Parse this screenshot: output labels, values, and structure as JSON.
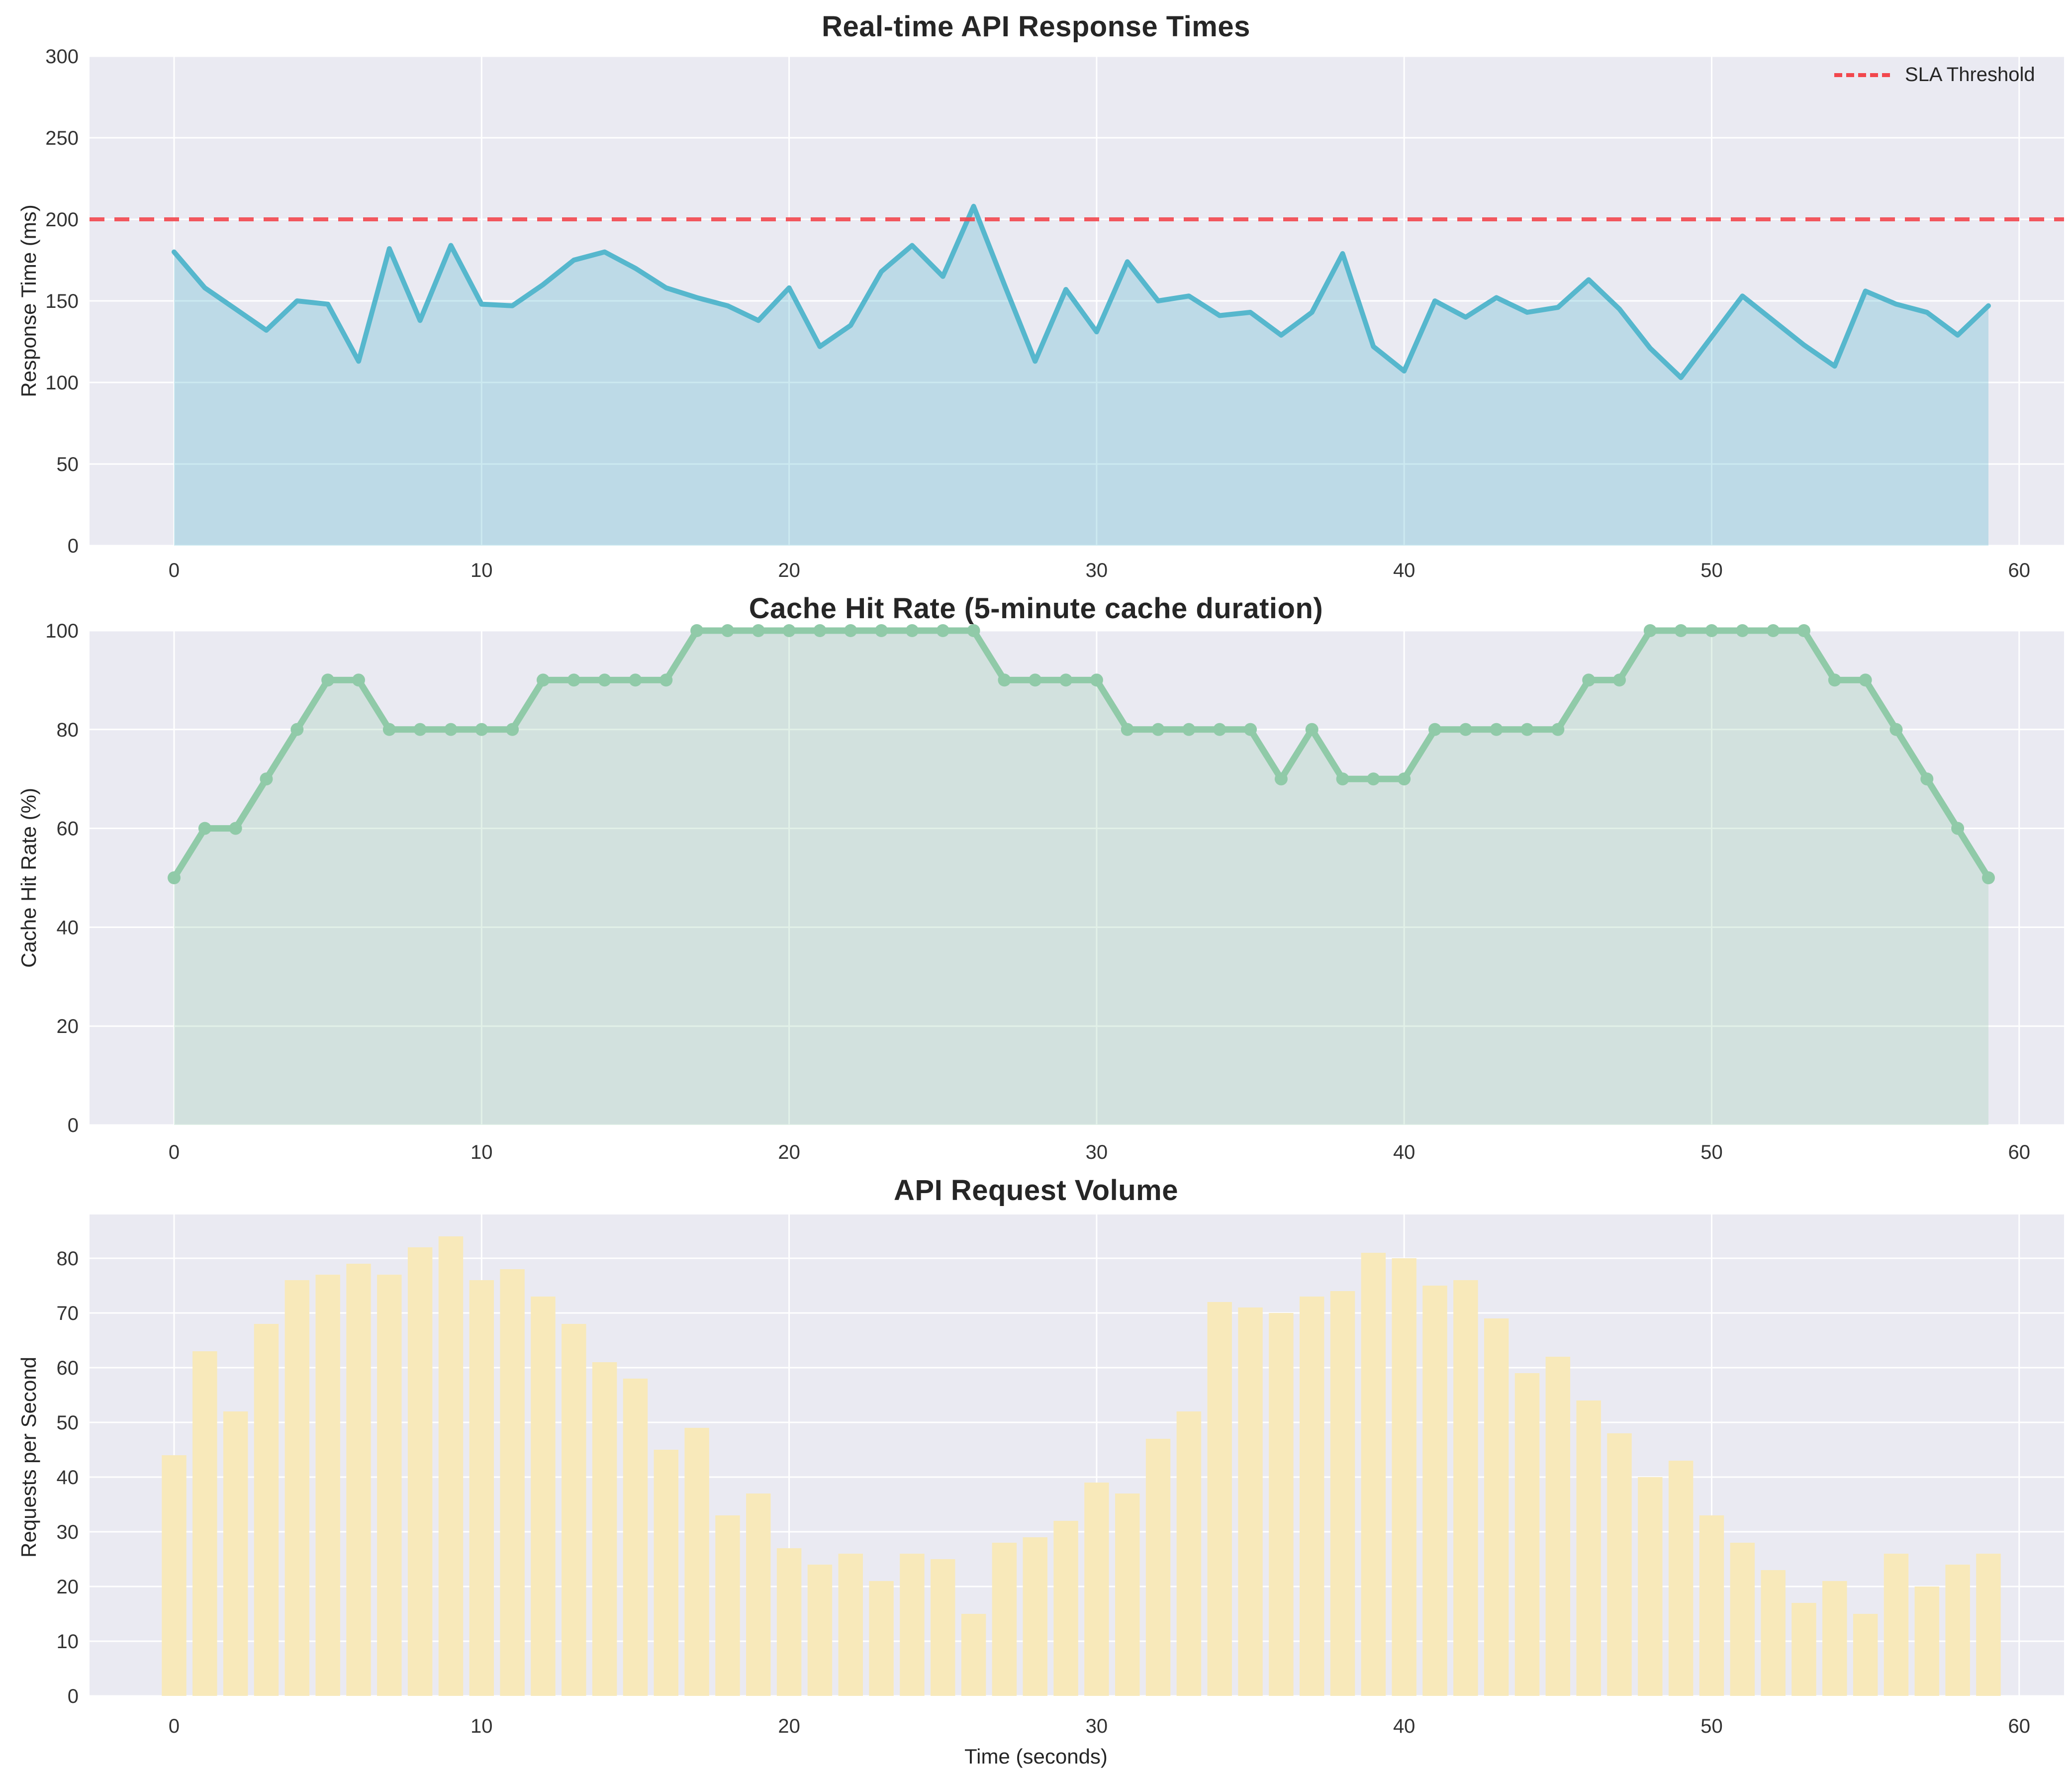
{
  "figure": {
    "background": "#ffffff",
    "plot_background": "#eaeaf2",
    "grid_color": "#ffffff",
    "tick_color": "#333333",
    "title_color": "#262626"
  },
  "xlabel": "Time (seconds)",
  "legend": {
    "label": "SLA Threshold",
    "color": "#f2474d",
    "position": "upper right"
  },
  "chart_data": [
    {
      "type": "area",
      "title": "Real-time API Response Times",
      "ylabel": "Response Time (ms)",
      "xlabel": "",
      "ylim": [
        0,
        300
      ],
      "yticks": [
        0,
        50,
        100,
        150,
        200,
        250,
        300
      ],
      "xticks": [
        0,
        10,
        20,
        30,
        40,
        50,
        60
      ],
      "grid": true,
      "line_color": "#56b7cd",
      "fill_alpha": 0.3,
      "sla_threshold": {
        "value": 200,
        "label": "SLA Threshold",
        "color": "#f2474d",
        "style": "dashed"
      },
      "x_start": 0,
      "x_step": 1,
      "values": [
        180,
        158,
        145,
        132,
        150,
        148,
        113,
        182,
        138,
        184,
        148,
        147,
        160,
        175,
        180,
        170,
        158,
        152,
        147,
        138,
        158,
        122,
        135,
        168,
        184,
        165,
        208,
        160,
        113,
        157,
        131,
        174,
        150,
        153,
        141,
        143,
        129,
        143,
        179,
        122,
        107,
        150,
        140,
        152,
        143,
        146,
        163,
        145,
        121,
        103,
        128,
        153,
        138,
        123,
        110,
        156,
        148,
        143,
        129,
        147
      ]
    },
    {
      "type": "area",
      "title": "Cache Hit Rate (5-minute cache duration)",
      "ylabel": "Cache Hit Rate (%)",
      "xlabel": "",
      "ylim": [
        0,
        100
      ],
      "yticks": [
        0,
        20,
        40,
        60,
        80,
        100
      ],
      "xticks": [
        0,
        10,
        20,
        30,
        40,
        50,
        60
      ],
      "grid": true,
      "line_color": "#90caa8",
      "fill_alpha": 0.26,
      "markers": true,
      "x_start": 0,
      "x_step": 1,
      "values": [
        50,
        60,
        60,
        70,
        80,
        90,
        90,
        80,
        80,
        80,
        80,
        80,
        90,
        90,
        90,
        90,
        90,
        100,
        100,
        100,
        100,
        100,
        100,
        100,
        100,
        100,
        100,
        90,
        90,
        90,
        90,
        80,
        80,
        80,
        80,
        80,
        70,
        80,
        70,
        70,
        70,
        80,
        80,
        80,
        80,
        80,
        90,
        90,
        100,
        100,
        100,
        100,
        100,
        100,
        90,
        90,
        80,
        70,
        60,
        50
      ]
    },
    {
      "type": "bar",
      "title": "API Request Volume",
      "ylabel": "Requests per Second",
      "xlabel": "Time (seconds)",
      "ylim": [
        0,
        88
      ],
      "yticks": [
        0,
        10,
        20,
        30,
        40,
        50,
        60,
        70,
        80
      ],
      "xticks": [
        0,
        10,
        20,
        30,
        40,
        50,
        60
      ],
      "grid": true,
      "bar_color": "#f8e9ba",
      "x_start": 0,
      "x_step": 1,
      "values": [
        44,
        63,
        52,
        68,
        76,
        77,
        79,
        77,
        82,
        84,
        76,
        78,
        73,
        68,
        61,
        58,
        45,
        49,
        33,
        37,
        27,
        24,
        26,
        21,
        26,
        25,
        15,
        28,
        29,
        32,
        39,
        37,
        47,
        52,
        72,
        71,
        70,
        73,
        74,
        81,
        80,
        75,
        76,
        69,
        59,
        62,
        54,
        48,
        40,
        43,
        33,
        28,
        23,
        17,
        21,
        15,
        26,
        20,
        24,
        26
      ]
    }
  ]
}
